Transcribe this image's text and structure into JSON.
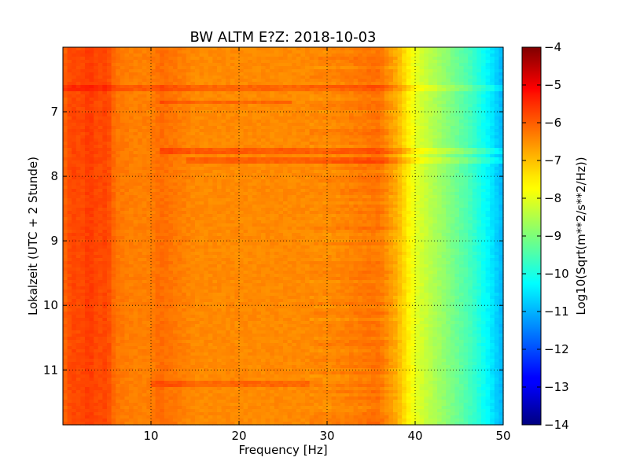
{
  "chart_data": {
    "type": "heatmap",
    "title": "BW ALTM E?Z: 2018-10-03",
    "xlabel": "Frequency [Hz]",
    "ylabel": "Lokalzeit (UTC + 2 Stunde)",
    "xlim": [
      0,
      50
    ],
    "ylim": [
      11.85,
      6.0
    ],
    "x_ticks": [
      10,
      20,
      30,
      40,
      50
    ],
    "y_ticks": [
      7,
      8,
      9,
      10,
      11
    ],
    "grid": true,
    "colormap": "jet",
    "colorbar": {
      "label": "Log10(Sqrt(m**2/s**2/Hz))",
      "range": [
        -14,
        -4
      ],
      "ticks": [
        -4,
        -5,
        -6,
        -7,
        -8,
        -9,
        -10,
        -11,
        -12,
        -13,
        -14
      ]
    },
    "spectrum_profile": {
      "frequency_hz": [
        0,
        1,
        2,
        3,
        4,
        5,
        6,
        8,
        10,
        11,
        15,
        20,
        25,
        30,
        33,
        35,
        36,
        37,
        38,
        39,
        40,
        42,
        44,
        46,
        48,
        49,
        50
      ],
      "log10_amplitude": [
        -6.3,
        -5.9,
        -6.0,
        -5.8,
        -6.0,
        -5.9,
        -6.4,
        -6.5,
        -6.5,
        -6.3,
        -6.6,
        -6.6,
        -6.6,
        -6.6,
        -6.5,
        -6.4,
        -6.4,
        -6.7,
        -7.0,
        -7.5,
        -8.0,
        -8.5,
        -9.0,
        -9.5,
        -10.2,
        -10.6,
        -11.0
      ]
    },
    "bands": [
      {
        "time": 6.62,
        "f_min": 0,
        "f_max": 50,
        "delta": 0.35
      },
      {
        "time": 6.85,
        "f_min": 11,
        "f_max": 26,
        "delta": 0.35
      },
      {
        "time": 7.6,
        "f_min": 11,
        "f_max": 50,
        "delta": 0.45
      },
      {
        "time": 7.75,
        "f_min": 14,
        "f_max": 50,
        "delta": 0.4
      },
      {
        "time": 11.22,
        "f_min": 10,
        "f_max": 28,
        "delta": 0.35
      }
    ]
  }
}
